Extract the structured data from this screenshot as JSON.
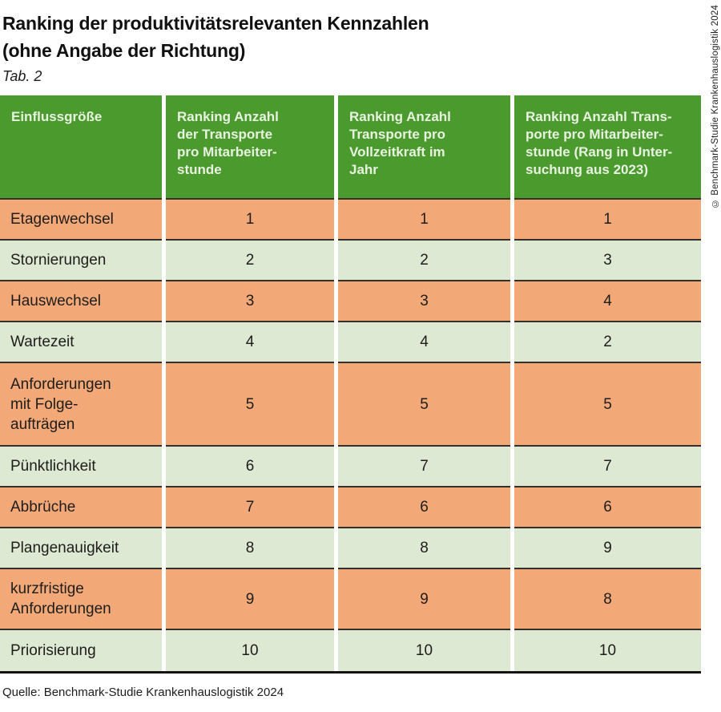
{
  "page": {
    "title_line1": "Ranking der produktivitätsrelevanten Kennzahlen",
    "title_line2": "(ohne Angabe der Richtung)",
    "tab_label": "Tab. 2",
    "source": "Quelle: Benchmark-Studie Krankenhauslogistik 2024",
    "copyright_vertical": "© Benchmark-Studie Krankenhauslogistik 2024"
  },
  "colors": {
    "header_green": "#4a9a2e",
    "header_text": "#e9f2e1",
    "row_orange": "#f3a878",
    "row_light_green": "#dde9d2",
    "row_separator": "#35312a",
    "bottom_rule": "#141414"
  },
  "chart_data": {
    "type": "table",
    "title": "Ranking der produktivitätsrelevanten Kennzahlen (ohne Angabe der Richtung)",
    "subtitle": "Tab. 2",
    "columns": [
      "Einflussgröße",
      "Ranking Anzahl\nder Transporte\npro Mitarbeiter-\nstunde",
      "Ranking Anzahl\nTransporte pro\nVollzeitkraft im\nJahr",
      "Ranking Anzahl Trans-\nporte pro Mitarbeiter-\nstunde (Rang in Unter-\nsuchung aus 2023)"
    ],
    "rows": [
      {
        "label": "Etagenwechsel",
        "values": [
          "1",
          "1",
          "1"
        ]
      },
      {
        "label": "Stornierungen",
        "values": [
          "2",
          "2",
          "3"
        ]
      },
      {
        "label": "Hauswechsel",
        "values": [
          "3",
          "3",
          "4"
        ]
      },
      {
        "label": "Wartezeit",
        "values": [
          "4",
          "4",
          "2"
        ]
      },
      {
        "label": "Anforderungen\nmit Folge-\naufträgen",
        "values": [
          "5",
          "5",
          "5"
        ]
      },
      {
        "label": "Pünktlichkeit",
        "values": [
          "6",
          "7",
          "7"
        ]
      },
      {
        "label": "Abbrüche",
        "values": [
          "7",
          "6",
          "6"
        ]
      },
      {
        "label": "Plangenauigkeit",
        "values": [
          "8",
          "8",
          "9"
        ]
      },
      {
        "label": "kurzfristige\nAnforderungen",
        "values": [
          "9",
          "9",
          "8"
        ]
      },
      {
        "label": "Priorisierung",
        "values": [
          "10",
          "10",
          "10"
        ]
      }
    ]
  }
}
